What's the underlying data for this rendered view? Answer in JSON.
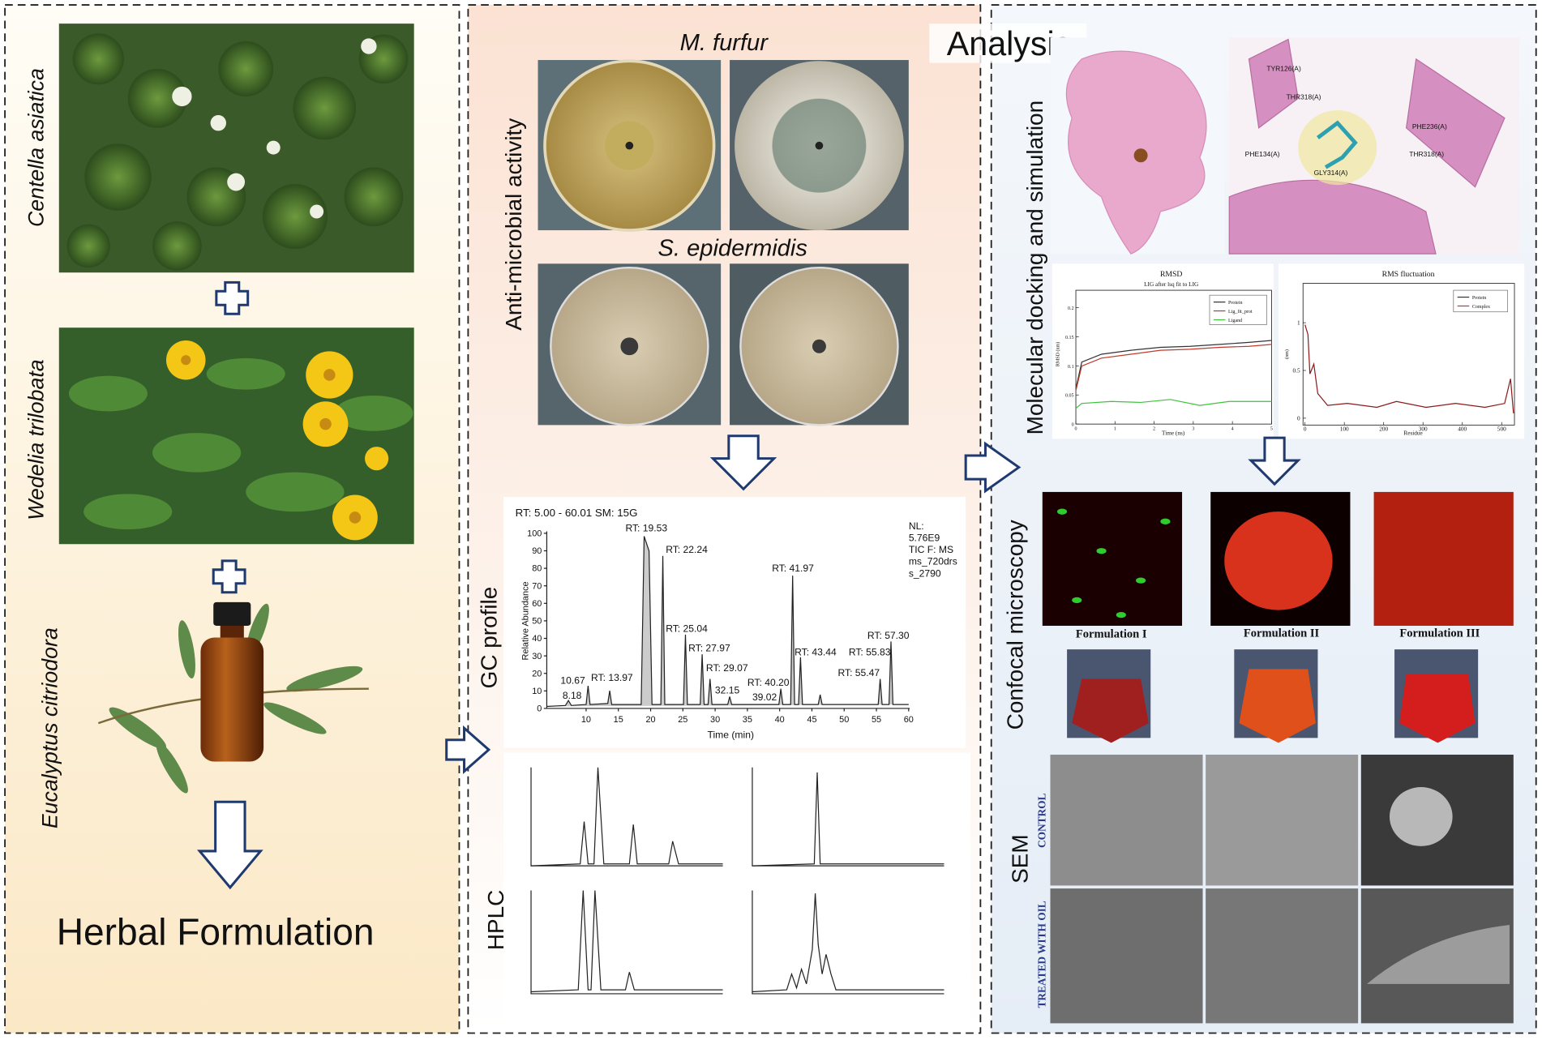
{
  "left_panel": {
    "plants": [
      "Centella asiatica",
      "Wedelia trilobata",
      "Eucalyptus citriodora"
    ],
    "title": "Herbal Formulation"
  },
  "middle_panel": {
    "antimicrobial": {
      "label": "Anti-microbial activity",
      "organisms": [
        "M. furfur",
        "S. epidermidis"
      ]
    },
    "gc_profile": {
      "label": "GC profile",
      "header": "RT: 5.00 - 60.01   SM: 15G",
      "info": [
        "NL:",
        "5.76E9",
        "TIC F:  MS",
        "ms_720drs",
        "s_2790"
      ],
      "y_label": "Relative Abundance",
      "x_label": "Time (min)",
      "yticks": [
        0,
        10,
        20,
        30,
        40,
        50,
        60,
        70,
        80,
        90,
        100
      ],
      "xticks": [
        10,
        15,
        20,
        25,
        30,
        35,
        40,
        45,
        50,
        55,
        60
      ],
      "peak_labels": [
        "RT: 19.53",
        "RT: 22.24",
        "RT: 25.04",
        "RT: 27.97",
        "RT: 29.07",
        "32.15",
        "RT: 40.20",
        "39.02",
        "RT: 41.97",
        "RT: 43.44",
        "RT: 55.83",
        "RT: 55.47",
        "RT: 57.30",
        "10.67",
        "8.18",
        "RT: 13.97"
      ]
    },
    "hplc": {
      "label": "HPLC"
    }
  },
  "right_panel": {
    "title": "Analysis",
    "docking": {
      "label": "Molecular docking and simulation",
      "residues": [
        "TYR126(A)",
        "THR318(A)",
        "PHE236(A)",
        "PHE134(A)",
        "GLY314(A)",
        "THR318(A)"
      ],
      "rmsd": {
        "title": "RMSD",
        "subtitle": "LIG after lsq fit to LIG",
        "legend": [
          "Protein",
          "Lig_fit_prot",
          "Ligand"
        ],
        "y_label": "RMSD (nm)",
        "x_label": "Time (ns)",
        "yticks": [
          0,
          0.05,
          0.1,
          0.15,
          0.2
        ],
        "xticks": [
          0,
          1,
          2,
          3,
          4,
          5
        ]
      },
      "rmsf": {
        "title": "RMS fluctuation",
        "legend": [
          "Protein",
          "Complex"
        ],
        "y_label": "(nm)",
        "x_label": "Residue",
        "yticks": [
          0,
          0.5,
          1
        ],
        "xticks": [
          0,
          100,
          200,
          300,
          400,
          500
        ]
      }
    },
    "confocal": {
      "label": "Confocal microscopy",
      "formulations": [
        "Formulation I",
        "Formulation II",
        "Formulation III"
      ]
    },
    "sem": {
      "label": "SEM",
      "rows": [
        "CONTROL",
        "TREATED WITH OIL"
      ]
    }
  }
}
